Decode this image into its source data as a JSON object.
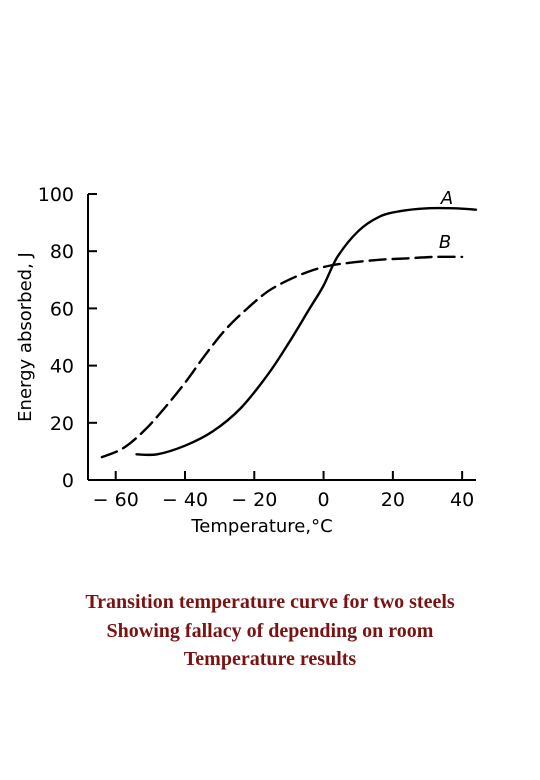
{
  "chart_data": {
    "type": "line",
    "xlabel": "Temperature,°C",
    "ylabel": "Energy absorbed, J",
    "xlim": [
      -68,
      44
    ],
    "ylim": [
      0,
      100
    ],
    "x_ticks": [
      -60,
      -40,
      -20,
      0,
      20,
      40
    ],
    "x_tick_labels": [
      "− 60",
      "− 40",
      "− 20",
      "0",
      "20",
      "40"
    ],
    "y_ticks": [
      0,
      20,
      40,
      60,
      80,
      100
    ],
    "y_tick_labels": [
      "0",
      "20",
      "40",
      "60",
      "80",
      "100"
    ],
    "grid": false,
    "series": [
      {
        "name": "A",
        "style": "solid",
        "x": [
          -54,
          -48,
          -40,
          -32,
          -24,
          -16,
          -10,
          -4,
          0,
          4,
          10,
          16,
          22,
          30,
          38,
          44
        ],
        "y": [
          9,
          9,
          12,
          17,
          25,
          37,
          48,
          60,
          68,
          78,
          87,
          92,
          94,
          95,
          95,
          94.5
        ]
      },
      {
        "name": "B",
        "style": "dashed",
        "x": [
          -64,
          -58,
          -52,
          -46,
          -40,
          -34,
          -28,
          -22,
          -16,
          -10,
          -4,
          2,
          8,
          16,
          24,
          32,
          40
        ],
        "y": [
          8,
          11,
          17,
          25,
          34,
          44,
          53,
          60,
          66,
          70,
          73,
          75,
          76,
          77,
          77.5,
          78,
          78
        ]
      }
    ]
  },
  "caption": {
    "lines": [
      "Transition temperature curve for two steels",
      "Showing fallacy of depending on room",
      "Temperature results"
    ]
  }
}
